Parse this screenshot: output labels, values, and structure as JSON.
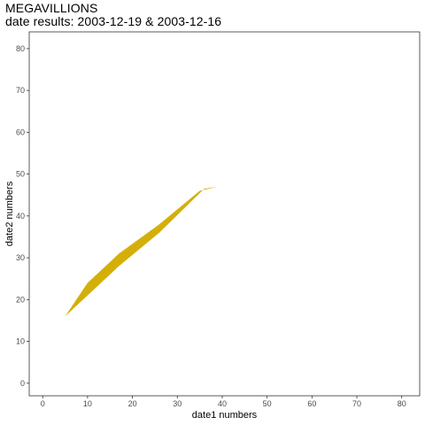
{
  "chart_data": {
    "type": "area",
    "title": "MEGAVILLIONS",
    "subtitle": "date results: 2003-12-19 & 2003-12-16",
    "xlabel": "date1 numbers",
    "ylabel": "date2 numbers",
    "xlim": [
      -3,
      84
    ],
    "ylim": [
      -3,
      84
    ],
    "xticks": [
      0,
      10,
      20,
      30,
      40,
      50,
      60,
      70,
      80
    ],
    "yticks": [
      0,
      10,
      20,
      30,
      40,
      50,
      60,
      70,
      80
    ],
    "grid": false,
    "series": [
      {
        "color": "#D4AF0A",
        "upper": [
          {
            "x": 5,
            "y": 16
          },
          {
            "x": 10,
            "y": 24
          },
          {
            "x": 17,
            "y": 31
          },
          {
            "x": 26,
            "y": 38
          },
          {
            "x": 35,
            "y": 46
          },
          {
            "x": 39,
            "y": 47
          }
        ],
        "lower": [
          {
            "x": 39,
            "y": 47
          },
          {
            "x": 36,
            "y": 46.5
          },
          {
            "x": 26,
            "y": 36
          },
          {
            "x": 17,
            "y": 28
          },
          {
            "x": 10,
            "y": 21
          },
          {
            "x": 5,
            "y": 16
          }
        ]
      }
    ]
  }
}
